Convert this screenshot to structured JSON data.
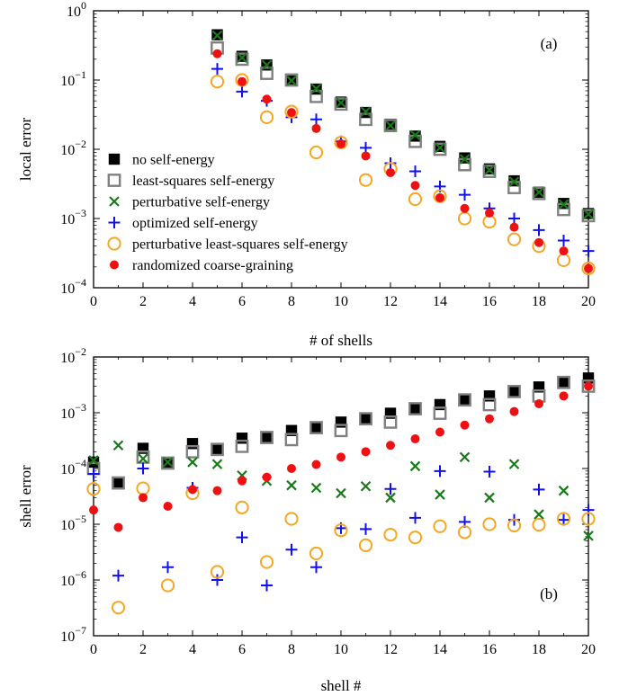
{
  "chart_data": [
    {
      "type": "scatter",
      "panel_label": "(a)",
      "xlabel": "# of shells",
      "ylabel": "local error",
      "y_scale": "log",
      "xlim": [
        0,
        20
      ],
      "ylim_exp": [
        -4,
        0
      ],
      "xticks": [
        "0",
        "2",
        "4",
        "6",
        "8",
        "10",
        "12",
        "14",
        "16",
        "18",
        "20"
      ],
      "yticks": [
        {
          "base": "10",
          "exp": "−4"
        },
        {
          "base": "10",
          "exp": "−3"
        },
        {
          "base": "10",
          "exp": "−2"
        },
        {
          "base": "10",
          "exp": "−1"
        },
        {
          "base": "10",
          "exp": "0"
        }
      ],
      "legend_position": "left-center",
      "x": [
        5,
        6,
        7,
        8,
        9,
        10,
        11,
        12,
        13,
        14,
        15,
        16,
        17,
        18,
        19,
        20
      ],
      "series": [
        {
          "name": "no self-energy",
          "marker": "square",
          "values": [
            0.45,
            0.22,
            0.165,
            0.1,
            0.074,
            0.048,
            0.034,
            0.023,
            0.0155,
            0.011,
            0.0075,
            0.0052,
            0.0035,
            0.0024,
            0.00165,
            0.00118
          ]
        },
        {
          "name": "least-squares self-energy",
          "marker": "open-square",
          "values": [
            0.29,
            0.2,
            0.125,
            0.1,
            0.058,
            0.045,
            0.027,
            0.022,
            0.013,
            0.01,
            0.006,
            0.0048,
            0.0028,
            0.0023,
            0.00135,
            0.0011
          ]
        },
        {
          "name": "perturbative self-energy",
          "marker": "x",
          "values": [
            0.44,
            0.21,
            0.165,
            0.098,
            0.075,
            0.047,
            0.035,
            0.022,
            0.016,
            0.0105,
            0.0072,
            0.005,
            0.0034,
            0.0024,
            0.0016,
            0.00115
          ]
        },
        {
          "name": "optimized self-energy",
          "marker": "plus",
          "values": [
            0.145,
            0.068,
            0.05,
            0.029,
            0.027,
            0.013,
            0.0105,
            0.0063,
            0.0048,
            0.0029,
            0.0022,
            0.0014,
            0.001,
            0.00068,
            0.00048,
            0.00034
          ]
        },
        {
          "name": "perturbative least-squares self-energy",
          "marker": "open-circle",
          "values": [
            0.095,
            0.1,
            0.029,
            0.035,
            0.009,
            0.0125,
            0.0036,
            0.0052,
            0.0019,
            0.0021,
            0.001,
            0.0009,
            0.0005,
            0.0004,
            0.00025,
            0.00019
          ]
        },
        {
          "name": "randomized coarse-graining",
          "marker": "dot",
          "values": [
            0.24,
            0.095,
            0.053,
            0.034,
            0.02,
            0.012,
            0.008,
            0.0046,
            0.003,
            0.002,
            0.0014,
            0.0012,
            0.00075,
            0.00045,
            0.00034,
            0.00019
          ]
        }
      ]
    },
    {
      "type": "scatter",
      "panel_label": "(b)",
      "xlabel": "shell #",
      "ylabel": "shell error",
      "y_scale": "log",
      "xlim": [
        0,
        20
      ],
      "ylim_exp": [
        -7,
        -2
      ],
      "xticks": [
        "0",
        "2",
        "4",
        "6",
        "8",
        "10",
        "12",
        "14",
        "16",
        "18",
        "20"
      ],
      "yticks": [
        {
          "base": "10",
          "exp": "−7"
        },
        {
          "base": "10",
          "exp": "−6"
        },
        {
          "base": "10",
          "exp": "−5"
        },
        {
          "base": "10",
          "exp": "−4"
        },
        {
          "base": "10",
          "exp": "−3"
        },
        {
          "base": "10",
          "exp": "−2"
        }
      ],
      "x": [
        0,
        1,
        2,
        3,
        4,
        5,
        6,
        7,
        8,
        9,
        10,
        11,
        12,
        13,
        14,
        15,
        16,
        17,
        18,
        19,
        20
      ],
      "series": [
        {
          "name": "no self-energy",
          "marker": "square",
          "values": [
            0.00013,
            5.5e-05,
            0.00023,
            0.000125,
            0.00028,
            0.00022,
            0.00035,
            0.00036,
            0.00048,
            0.00054,
            0.00068,
            0.00078,
            0.00098,
            0.00118,
            0.0014,
            0.0017,
            0.002,
            0.0024,
            0.0029,
            0.0035,
            0.0042
          ]
        },
        {
          "name": "least-squares self-energy",
          "marker": "open-square",
          "values": [
            0.0001,
            5.5e-05,
            0.00016,
            0.000125,
            0.0002,
            0.00022,
            0.00025,
            0.00036,
            0.00033,
            0.00054,
            0.00048,
            0.00078,
            0.00068,
            0.00118,
            0.00098,
            0.0017,
            0.0014,
            0.0024,
            0.002,
            0.0035,
            0.003
          ]
        },
        {
          "name": "perturbative self-energy",
          "marker": "x",
          "values": [
            0.00014,
            0.00026,
            0.00015,
            0.00013,
            0.00013,
            0.00012,
            7.5e-05,
            6e-05,
            5e-05,
            4.5e-05,
            3.6e-05,
            4.8e-05,
            3e-05,
            0.00011,
            3.4e-05,
            0.00016,
            3e-05,
            0.00012,
            1.5e-05,
            4e-05,
            6.2e-06
          ]
        },
        {
          "name": "optimized self-energy",
          "marker": "plus",
          "values": [
            8e-05,
            1.2e-06,
            0.0001,
            1.7e-06,
            4.5e-05,
            1e-06,
            5.8e-06,
            8e-07,
            3.5e-06,
            1.7e-06,
            8.5e-06,
            8.2e-06,
            4.3e-05,
            1.3e-05,
            9e-05,
            1.1e-05,
            8.8e-05,
            1.2e-05,
            4.2e-05,
            1.2e-05,
            1.8e-05
          ]
        },
        {
          "name": "perturbative least-squares self-energy",
          "marker": "open-circle",
          "values": [
            4.3e-05,
            3.2e-07,
            4.4e-05,
            8e-07,
            3.6e-05,
            1.4e-06,
            2e-05,
            2.1e-06,
            1.25e-05,
            3e-06,
            7.8e-06,
            4.2e-06,
            6.5e-06,
            5.8e-06,
            9.2e-06,
            7.2e-06,
            1e-05,
            9.5e-06,
            9.8e-06,
            1.25e-05,
            1.25e-05
          ]
        },
        {
          "name": "randomized coarse-graining",
          "marker": "dot",
          "values": [
            1.8e-05,
            8.8e-06,
            3e-05,
            2.1e-05,
            4.2e-05,
            4e-05,
            6e-05,
            7e-05,
            0.0001,
            0.000118,
            0.00016,
            0.0002,
            0.00026,
            0.00034,
            0.00045,
            0.0006,
            0.00078,
            0.00105,
            0.00145,
            0.002,
            0.003
          ]
        }
      ]
    }
  ],
  "colors": {
    "no self-energy": "#000000",
    "least-squares self-energy": "#808080",
    "perturbative self-energy": "#1a7a1a",
    "optimized self-energy": "#1010ee",
    "perturbative least-squares self-energy": "#f5a623",
    "randomized coarse-graining": "#ee1111"
  }
}
